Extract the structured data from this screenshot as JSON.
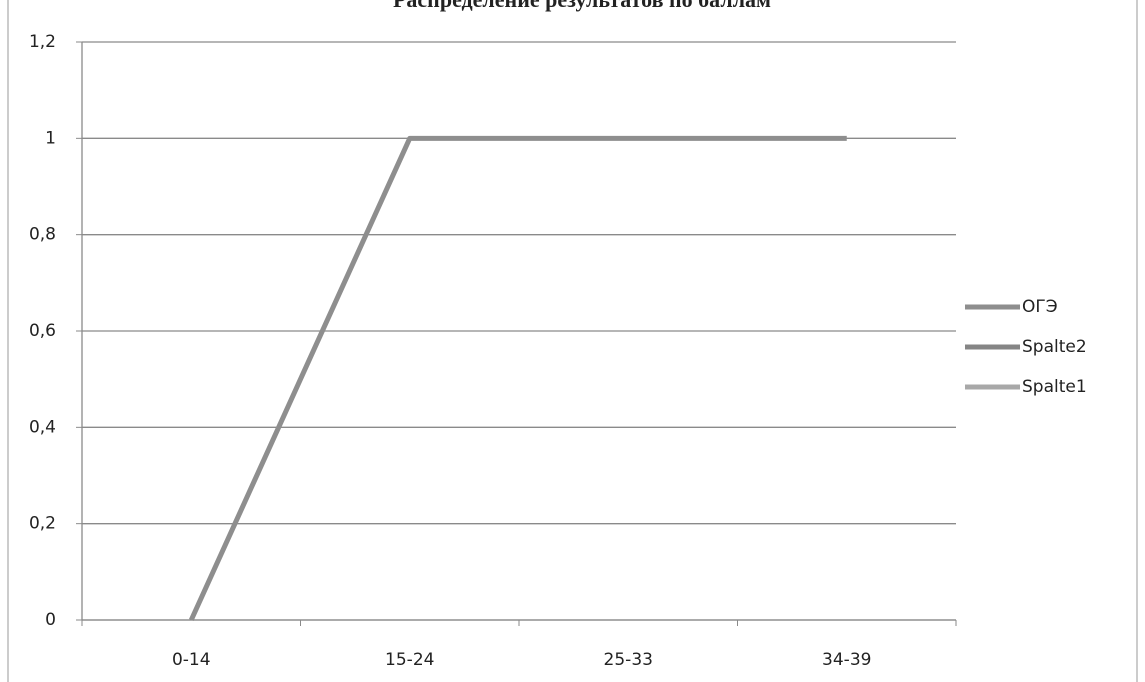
{
  "chart_data": {
    "type": "line",
    "title": "Распределение результатов по баллам",
    "categories": [
      "0-14",
      "15-24",
      "25-33",
      "34-39"
    ],
    "series": [
      {
        "name": "ОГЭ",
        "color": "#8e8e8e",
        "values": [
          0,
          1,
          1,
          1
        ]
      },
      {
        "name": "Spalte2",
        "color": "#858585",
        "values": [
          null,
          null,
          null,
          null
        ]
      },
      {
        "name": "Spalte1",
        "color": "#a8a8a8",
        "values": [
          null,
          null,
          null,
          null
        ]
      }
    ],
    "ylim": [
      0,
      1.2
    ],
    "yticks": [
      0,
      {
        "value": 0.2,
        "label": "0,2"
      },
      {
        "value": 0.4,
        "label": "0,4"
      },
      {
        "value": 0.6,
        "label": "0,6"
      },
      {
        "value": 0.8,
        "label": "0,8"
      },
      1,
      {
        "value": 1.2,
        "label": "1,2"
      }
    ],
    "grid": true,
    "legend": "right"
  }
}
